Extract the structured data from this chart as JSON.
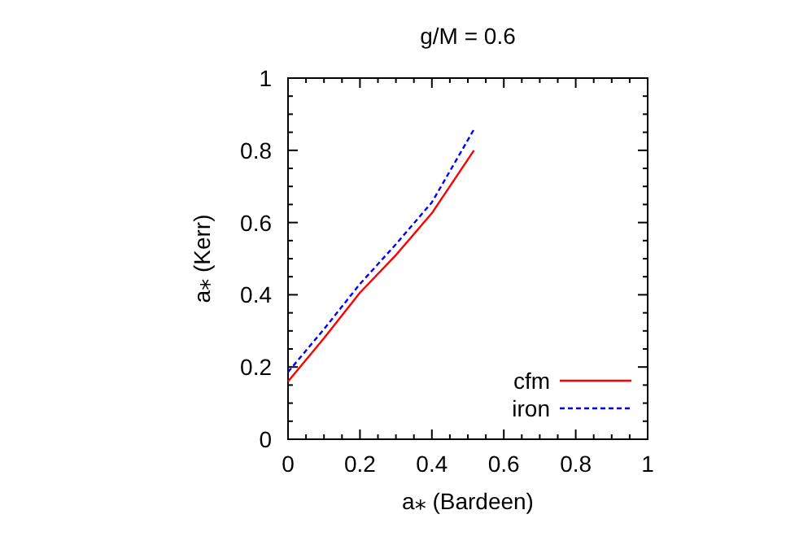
{
  "chart_data": {
    "type": "line",
    "title": "g/M = 0.6",
    "xlabel": "a⁎ (Bardeen)",
    "ylabel": "a⁎ (Kerr)",
    "xlim": [
      0,
      1
    ],
    "ylim": [
      0,
      1
    ],
    "xticks": [
      0,
      0.2,
      0.4,
      0.6,
      0.8,
      1
    ],
    "yticks": [
      0,
      0.2,
      0.4,
      0.6,
      0.8,
      1
    ],
    "legend": "bottom right",
    "grid": false,
    "series": [
      {
        "name": "cfm",
        "color": "#ff0000",
        "line_style": "solid",
        "x": [
          0,
          0.1,
          0.2,
          0.3,
          0.4,
          0.517
        ],
        "values": [
          0.16,
          0.28,
          0.406,
          0.51,
          0.626,
          0.8
        ]
      },
      {
        "name": "iron",
        "color": "#0000ff",
        "line_style": "dashed",
        "x": [
          0,
          0.1,
          0.2,
          0.3,
          0.4,
          0.517
        ],
        "values": [
          0.186,
          0.305,
          0.43,
          0.54,
          0.656,
          0.858
        ]
      }
    ]
  }
}
